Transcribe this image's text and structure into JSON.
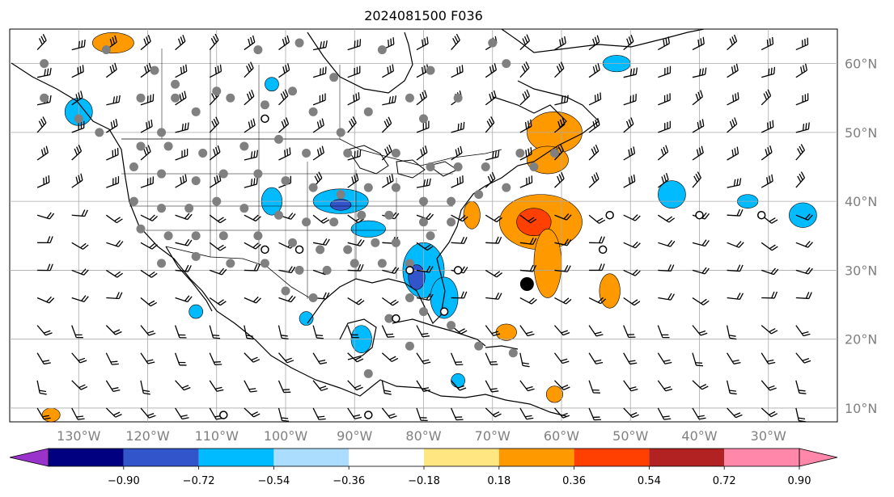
{
  "title": "2024081500 F036",
  "map": {
    "lon_range": [
      -140,
      -20
    ],
    "lat_range": [
      8,
      65
    ],
    "longitude_labels": [
      {
        "lon": -130,
        "text": "130°W"
      },
      {
        "lon": -120,
        "text": "120°W"
      },
      {
        "lon": -110,
        "text": "110°W"
      },
      {
        "lon": -100,
        "text": "100°W"
      },
      {
        "lon": -90,
        "text": "90°W"
      },
      {
        "lon": -80,
        "text": "80°W"
      },
      {
        "lon": -70,
        "text": "70°W"
      },
      {
        "lon": -60,
        "text": "60°W"
      },
      {
        "lon": -50,
        "text": "50°W"
      },
      {
        "lon": -40,
        "text": "40°W"
      },
      {
        "lon": -30,
        "text": "30°W"
      }
    ],
    "latitude_labels": [
      {
        "lat": 60,
        "text": "60°N"
      },
      {
        "lat": 50,
        "text": "50°N"
      },
      {
        "lat": 40,
        "text": "40°N"
      },
      {
        "lat": 30,
        "text": "30°N"
      },
      {
        "lat": 20,
        "text": "20°N"
      },
      {
        "lat": 10,
        "text": "10°N"
      }
    ],
    "grid": true,
    "colors": {
      "land_outline": "#000000",
      "grid": "#aaaaaa",
      "station_dot": "#808080",
      "barb": "#000000"
    }
  },
  "colorbar": {
    "ticks": [
      "−0.90",
      "−0.72",
      "−0.54",
      "−0.36",
      "−0.18",
      "0.18",
      "0.36",
      "0.54",
      "0.72",
      "0.90"
    ],
    "colors": [
      "#9933cc",
      "#000080",
      "#3355cc",
      "#00bbff",
      "#aaddff",
      "#ffffff",
      "#ffe680",
      "#ff9900",
      "#ff4000",
      "#b22222",
      "#ff88aa"
    ],
    "extend": "both"
  },
  "anomaly_regions": [
    {
      "sign": "positive",
      "level": 2,
      "lon": -63,
      "lat": 37,
      "rx": 6,
      "ry": 4
    },
    {
      "sign": "positive",
      "level": 3,
      "lon": -64,
      "lat": 37,
      "rx": 2.5,
      "ry": 2
    },
    {
      "sign": "positive",
      "level": 2,
      "lon": -62,
      "lat": 31,
      "rx": 2,
      "ry": 5
    },
    {
      "sign": "positive",
      "level": 2,
      "lon": -61,
      "lat": 50,
      "rx": 4,
      "ry": 3
    },
    {
      "sign": "positive",
      "level": 2,
      "lon": -62,
      "lat": 46,
      "rx": 3,
      "ry": 2
    },
    {
      "sign": "positive",
      "level": 2,
      "lon": -125,
      "lat": 63,
      "rx": 3,
      "ry": 1.5
    },
    {
      "sign": "positive",
      "level": 2,
      "lon": -73,
      "lat": 38,
      "rx": 1.2,
      "ry": 2
    },
    {
      "sign": "positive",
      "level": 2,
      "lon": -53,
      "lat": 27,
      "rx": 1.5,
      "ry": 2.5
    },
    {
      "sign": "positive",
      "level": 2,
      "lon": -68,
      "lat": 21,
      "rx": 1.5,
      "ry": 1.2
    },
    {
      "sign": "positive",
      "level": 2,
      "lon": -61,
      "lat": 12,
      "rx": 1.2,
      "ry": 1.2
    },
    {
      "sign": "positive",
      "level": 2,
      "lon": -134,
      "lat": 9,
      "rx": 1.3,
      "ry": 1
    },
    {
      "sign": "negative",
      "level": 2,
      "lon": -80,
      "lat": 30,
      "rx": 3,
      "ry": 4
    },
    {
      "sign": "negative",
      "level": 3,
      "lon": -81,
      "lat": 29,
      "rx": 1.2,
      "ry": 1.8
    },
    {
      "sign": "negative",
      "level": 2,
      "lon": -77,
      "lat": 26,
      "rx": 2,
      "ry": 3
    },
    {
      "sign": "negative",
      "level": 2,
      "lon": -92,
      "lat": 40,
      "rx": 4,
      "ry": 1.8
    },
    {
      "sign": "negative",
      "level": 3,
      "lon": -92,
      "lat": 39.5,
      "rx": 1.5,
      "ry": 0.8
    },
    {
      "sign": "negative",
      "level": 2,
      "lon": -88,
      "lat": 36,
      "rx": 2.5,
      "ry": 1.2
    },
    {
      "sign": "negative",
      "level": 2,
      "lon": -102,
      "lat": 40,
      "rx": 1.5,
      "ry": 2
    },
    {
      "sign": "negative",
      "level": 2,
      "lon": -130,
      "lat": 53,
      "rx": 2,
      "ry": 2
    },
    {
      "sign": "negative",
      "level": 2,
      "lon": -102,
      "lat": 57,
      "rx": 1,
      "ry": 1
    },
    {
      "sign": "negative",
      "level": 2,
      "lon": -52,
      "lat": 60,
      "rx": 2,
      "ry": 1.2
    },
    {
      "sign": "negative",
      "level": 2,
      "lon": -44,
      "lat": 41,
      "rx": 2,
      "ry": 2
    },
    {
      "sign": "negative",
      "level": 2,
      "lon": -33,
      "lat": 40,
      "rx": 1.5,
      "ry": 1
    },
    {
      "sign": "negative",
      "level": 2,
      "lon": -25,
      "lat": 38,
      "rx": 2,
      "ry": 1.8
    },
    {
      "sign": "negative",
      "level": 2,
      "lon": -89,
      "lat": 20,
      "rx": 1.5,
      "ry": 2
    },
    {
      "sign": "negative",
      "level": 2,
      "lon": -75,
      "lat": 14,
      "rx": 1,
      "ry": 1
    },
    {
      "sign": "negative",
      "level": 2,
      "lon": -113,
      "lat": 24,
      "rx": 1,
      "ry": 1
    },
    {
      "sign": "negative",
      "level": 2,
      "lon": -97,
      "lat": 23,
      "rx": 1,
      "ry": 1
    }
  ],
  "stations_gray": [
    [
      -135,
      60
    ],
    [
      -126,
      62
    ],
    [
      -119,
      59
    ],
    [
      -116,
      57
    ],
    [
      -110,
      56
    ],
    [
      -104,
      62
    ],
    [
      -98,
      63
    ],
    [
      -93,
      58
    ],
    [
      -86,
      62
    ],
    [
      -79,
      59
    ],
    [
      -75,
      55
    ],
    [
      -70,
      63
    ],
    [
      -68,
      60
    ],
    [
      -135,
      55
    ],
    [
      -130,
      52
    ],
    [
      -127,
      50
    ],
    [
      -121,
      55
    ],
    [
      -118,
      50
    ],
    [
      -116,
      55
    ],
    [
      -113,
      53
    ],
    [
      -108,
      55
    ],
    [
      -103,
      54
    ],
    [
      -99,
      56
    ],
    [
      -96,
      53
    ],
    [
      -92,
      50
    ],
    [
      -88,
      53
    ],
    [
      -82,
      55
    ],
    [
      -80,
      52
    ],
    [
      -121,
      48
    ],
    [
      -117,
      48
    ],
    [
      -112,
      47
    ],
    [
      -106,
      48
    ],
    [
      -101,
      49
    ],
    [
      -97,
      47
    ],
    [
      -91,
      47
    ],
    [
      -84,
      47
    ],
    [
      -79,
      45
    ],
    [
      -75,
      45
    ],
    [
      -71,
      45
    ],
    [
      -66,
      47
    ],
    [
      -64,
      45
    ],
    [
      -61,
      47
    ],
    [
      -122,
      45
    ],
    [
      -118,
      44
    ],
    [
      -113,
      43
    ],
    [
      -109,
      44
    ],
    [
      -104,
      44
    ],
    [
      -100,
      43
    ],
    [
      -96,
      42
    ],
    [
      -92,
      41
    ],
    [
      -88,
      42
    ],
    [
      -84,
      42
    ],
    [
      -80,
      40
    ],
    [
      -76,
      40
    ],
    [
      -72,
      41
    ],
    [
      -68,
      42
    ],
    [
      -122,
      40
    ],
    [
      -118,
      39
    ],
    [
      -114,
      39
    ],
    [
      -110,
      40
    ],
    [
      -106,
      39
    ],
    [
      -101,
      38
    ],
    [
      -97,
      37
    ],
    [
      -93,
      37
    ],
    [
      -89,
      38
    ],
    [
      -85,
      38
    ],
    [
      -80,
      37
    ],
    [
      -76,
      37
    ],
    [
      -121,
      36
    ],
    [
      -117,
      35
    ],
    [
      -113,
      35
    ],
    [
      -109,
      35
    ],
    [
      -104,
      35
    ],
    [
      -99,
      34
    ],
    [
      -95,
      33
    ],
    [
      -91,
      33
    ],
    [
      -87,
      34
    ],
    [
      -84,
      34
    ],
    [
      -79,
      35
    ],
    [
      -118,
      31
    ],
    [
      -113,
      32
    ],
    [
      -108,
      31
    ],
    [
      -103,
      31
    ],
    [
      -98,
      30
    ],
    [
      -94,
      30
    ],
    [
      -90,
      31
    ],
    [
      -86,
      31
    ],
    [
      -82,
      31
    ],
    [
      -100,
      27
    ],
    [
      -96,
      26
    ],
    [
      -82,
      26
    ],
    [
      -80,
      24
    ],
    [
      -76,
      22
    ],
    [
      -72,
      19
    ],
    [
      -67,
      18
    ],
    [
      -85,
      23
    ],
    [
      -82,
      19
    ],
    [
      -88,
      15
    ]
  ],
  "stations_open": [
    [
      -103,
      52
    ],
    [
      -103,
      33
    ],
    [
      -98,
      33
    ],
    [
      -82,
      30
    ],
    [
      -75,
      30
    ],
    [
      -84,
      23
    ],
    [
      -77,
      24
    ],
    [
      -54,
      33
    ],
    [
      -53,
      38
    ],
    [
      -40,
      38
    ],
    [
      -31,
      38
    ],
    [
      -109,
      9
    ],
    [
      -88,
      9
    ]
  ],
  "stations_large": [
    [
      -65,
      28
    ]
  ]
}
